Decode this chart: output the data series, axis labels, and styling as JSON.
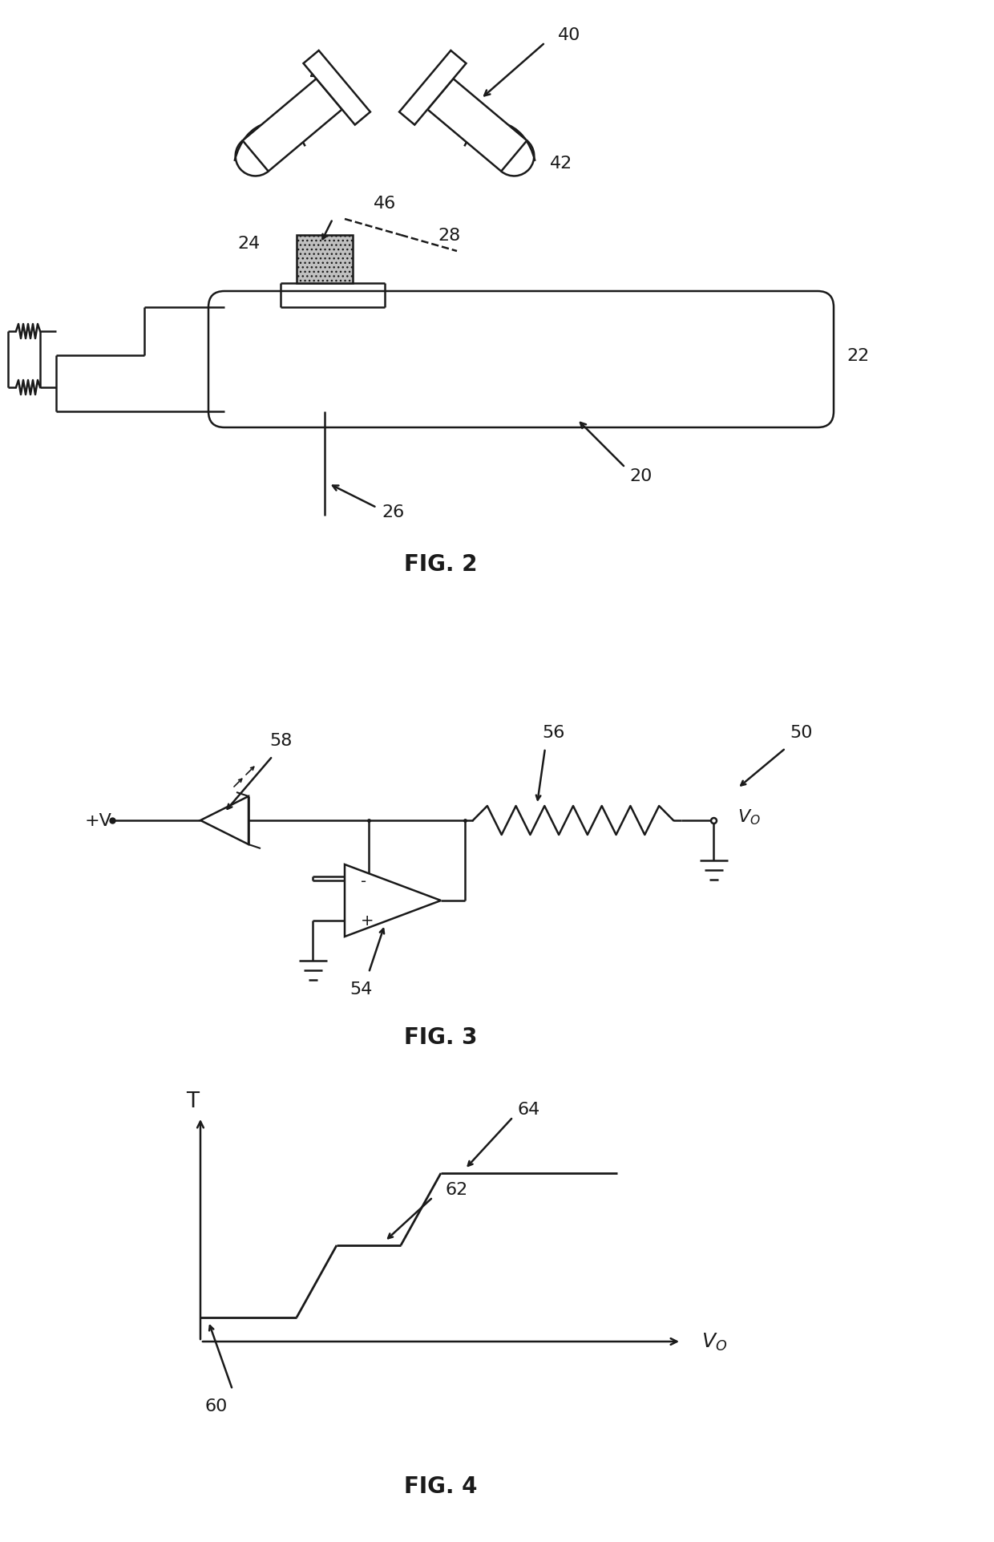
{
  "bg_color": "#ffffff",
  "line_color": "#1a1a1a",
  "fig2_label": "FIG. 2",
  "fig3_label": "FIG. 3",
  "fig4_label": "FIG. 4",
  "label_fontsize": 20,
  "ref_fontsize": 16,
  "annotation_fontsize": 16
}
